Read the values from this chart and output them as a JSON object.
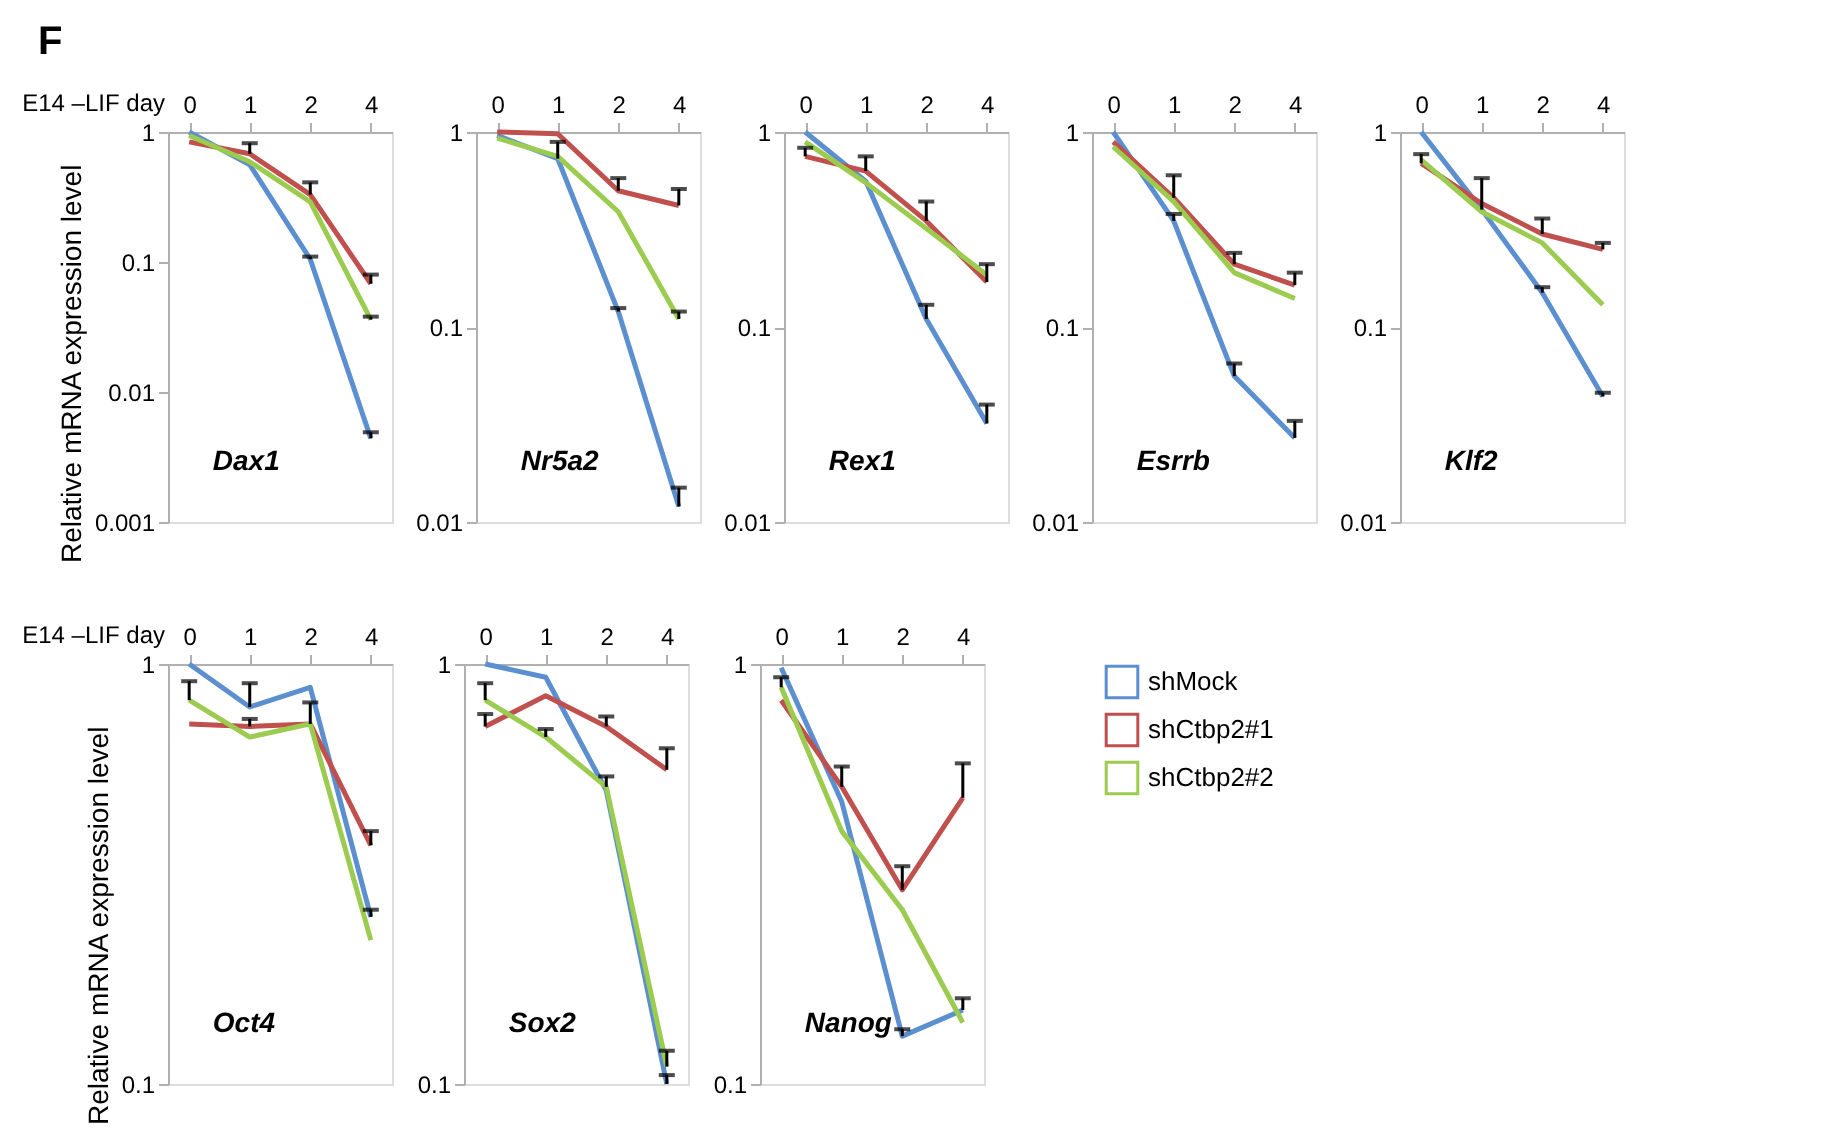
{
  "chart_data": [
    {
      "type": "line",
      "title": "Dax1",
      "xlabel": "E14 –LIF day",
      "ylabel": "Relative mRNA expression level",
      "annotations": [
        "F"
      ],
      "categories": [
        "0",
        "1",
        "2",
        "4"
      ],
      "log": true,
      "ylim": [
        0.001,
        1
      ],
      "yticks": [
        0.001,
        0.01,
        0.1,
        1
      ],
      "series": [
        {
          "color": "#5b8fd0",
          "values": [
            1.0,
            0.56,
            0.105,
            0.0044
          ],
          "errors": [
            null,
            null,
            [
              0.105,
              0.11
            ],
            [
              0.0044,
              0.0049
            ]
          ]
        },
        {
          "color": "#c0504d",
          "values": [
            0.84,
            0.68,
            0.33,
            0.068
          ],
          "errors": [
            null,
            [
              0.68,
              0.82
            ],
            [
              0.33,
              0.41
            ],
            [
              0.068,
              0.08
            ]
          ]
        },
        {
          "color": "#9bcb4f",
          "values": [
            0.94,
            0.59,
            0.29,
            0.036
          ],
          "errors": [
            null,
            null,
            null,
            [
              0.036,
              0.038
            ]
          ]
        }
      ]
    },
    {
      "type": "line",
      "title": "Nr5a2",
      "categories": [
        "0",
        "1",
        "2",
        "4"
      ],
      "log": true,
      "ylim": [
        0.01,
        1
      ],
      "yticks": [
        0.01,
        0.1,
        1
      ],
      "series": [
        {
          "color": "#5b8fd0",
          "values": [
            0.96,
            0.73,
            0.12,
            0.012
          ],
          "errors": [
            null,
            [
              0.73,
              0.89
            ],
            [
              0.12,
              0.125
            ],
            [
              0.012,
              0.015
            ]
          ]
        },
        {
          "color": "#c0504d",
          "values": [
            1.0,
            0.98,
            0.5,
            0.42
          ],
          "errors": [
            null,
            null,
            [
              0.5,
              0.58
            ],
            [
              0.42,
              0.51
            ]
          ]
        },
        {
          "color": "#9bcb4f",
          "values": [
            0.93,
            0.75,
            0.39,
            0.11
          ],
          "errors": [
            null,
            null,
            null,
            [
              0.11,
              0.12
            ]
          ]
        }
      ]
    },
    {
      "type": "line",
      "title": "Rex1",
      "categories": [
        "0",
        "1",
        "2",
        "4"
      ],
      "log": true,
      "ylim": [
        0.01,
        1
      ],
      "yticks": [
        0.01,
        0.1,
        1
      ],
      "series": [
        {
          "color": "#5b8fd0",
          "values": [
            1.0,
            0.56,
            0.11,
            0.032
          ],
          "errors": [
            null,
            null,
            [
              0.11,
              0.13
            ],
            [
              0.032,
              0.04
            ]
          ]
        },
        {
          "color": "#c0504d",
          "values": [
            0.75,
            0.63,
            0.35,
            0.17
          ],
          "errors": [
            [
              0.75,
              0.83
            ],
            [
              0.63,
              0.75
            ],
            [
              0.35,
              0.44
            ],
            [
              0.17,
              0.21
            ]
          ]
        },
        {
          "color": "#9bcb4f",
          "values": [
            0.89,
            0.55,
            0.32,
            0.185
          ],
          "errors": [
            null,
            null,
            null,
            null
          ]
        }
      ]
    },
    {
      "type": "line",
      "title": "Esrrb",
      "categories": [
        "0",
        "1",
        "2",
        "4"
      ],
      "log": true,
      "ylim": [
        0.01,
        1
      ],
      "yticks": [
        0.01,
        0.1,
        1
      ],
      "series": [
        {
          "color": "#5b8fd0",
          "values": [
            1.0,
            0.35,
            0.056,
            0.027
          ],
          "errors": [
            null,
            [
              0.35,
              0.38
            ],
            [
              0.056,
              0.065
            ],
            [
              0.027,
              0.033
            ]
          ]
        },
        {
          "color": "#c0504d",
          "values": [
            0.89,
            0.46,
            0.21,
            0.164
          ],
          "errors": [
            null,
            [
              0.46,
              0.6
            ],
            [
              0.21,
              0.24
            ],
            [
              0.164,
              0.19
            ]
          ]
        },
        {
          "color": "#9bcb4f",
          "values": [
            0.84,
            0.44,
            0.19,
            0.14
          ],
          "errors": [
            null,
            null,
            null,
            null
          ]
        }
      ]
    },
    {
      "type": "line",
      "title": "Klf2",
      "categories": [
        "0",
        "1",
        "2",
        "4"
      ],
      "log": true,
      "ylim": [
        0.01,
        1
      ],
      "yticks": [
        0.01,
        0.1,
        1
      ],
      "series": [
        {
          "color": "#5b8fd0",
          "values": [
            1.0,
            0.4,
            0.15,
            0.044
          ],
          "errors": [
            null,
            [
              0.4,
              0.58
            ],
            [
              0.15,
              0.16
            ],
            [
              0.044,
              0.046
            ]
          ]
        },
        {
          "color": "#c0504d",
          "values": [
            0.69,
            0.43,
            0.3,
            0.25
          ],
          "errors": [
            [
              0.69,
              0.77
            ],
            null,
            [
              0.3,
              0.36
            ],
            [
              0.25,
              0.27
            ]
          ]
        },
        {
          "color": "#9bcb4f",
          "values": [
            0.72,
            0.39,
            0.27,
            0.13
          ],
          "errors": [
            null,
            null,
            null,
            null
          ]
        }
      ]
    },
    {
      "type": "line",
      "title": "Oct4",
      "xlabel": "E14 –LIF day",
      "ylabel": "Relative mRNA expression level",
      "categories": [
        "0",
        "1",
        "2",
        "4"
      ],
      "log": true,
      "ylim": [
        0.1,
        1
      ],
      "yticks": [
        0.1,
        1
      ],
      "series": [
        {
          "color": "#5b8fd0",
          "values": [
            1.0,
            0.79,
            0.88,
            0.25
          ],
          "errors": [
            null,
            [
              0.79,
              0.9
            ],
            null,
            [
              0.25,
              0.26
            ]
          ]
        },
        {
          "color": "#c0504d",
          "values": [
            0.72,
            0.71,
            0.72,
            0.37
          ],
          "errors": [
            null,
            [
              0.71,
              0.74
            ],
            [
              0.72,
              0.81
            ],
            [
              0.37,
              0.4
            ]
          ]
        },
        {
          "color": "#9bcb4f",
          "values": [
            0.82,
            0.67,
            0.72,
            0.22
          ],
          "errors": [
            [
              0.82,
              0.91
            ],
            null,
            null,
            null
          ]
        }
      ]
    },
    {
      "type": "line",
      "title": "Sox2",
      "categories": [
        "0",
        "1",
        "2",
        "4"
      ],
      "log": true,
      "ylim": [
        0.1,
        1
      ],
      "yticks": [
        0.1,
        1
      ],
      "series": [
        {
          "color": "#5b8fd0",
          "values": [
            1.0,
            0.93,
            0.5,
            0.1
          ],
          "errors": [
            null,
            null,
            null,
            [
              0.1,
              0.105
            ]
          ]
        },
        {
          "color": "#c0504d",
          "values": [
            0.71,
            0.84,
            0.71,
            0.56
          ],
          "errors": [
            [
              0.71,
              0.76
            ],
            null,
            [
              0.71,
              0.75
            ],
            [
              0.56,
              0.63
            ]
          ]
        },
        {
          "color": "#9bcb4f",
          "values": [
            0.82,
            0.67,
            0.51,
            0.11
          ],
          "errors": [
            [
              0.82,
              0.9
            ],
            [
              0.67,
              0.7
            ],
            [
              0.51,
              0.54
            ],
            [
              0.11,
              0.12
            ]
          ]
        }
      ]
    },
    {
      "type": "line",
      "title": "Nanog",
      "categories": [
        "0",
        "1",
        "2",
        "4"
      ],
      "log": true,
      "ylim": [
        0.1,
        1
      ],
      "yticks": [
        0.1,
        1
      ],
      "legend": "right",
      "series": [
        {
          "name": "shMock",
          "color": "#5b8fd0",
          "values": [
            0.98,
            0.47,
            0.13,
            0.15
          ],
          "errors": [
            null,
            null,
            [
              0.13,
              0.135
            ],
            [
              0.15,
              0.16
            ]
          ]
        },
        {
          "name": "shCtbp2#1",
          "color": "#c0504d",
          "values": [
            0.82,
            0.51,
            0.29,
            0.48
          ],
          "errors": [
            null,
            [
              0.51,
              0.57
            ],
            [
              0.29,
              0.33
            ],
            [
              0.48,
              0.58
            ]
          ]
        },
        {
          "name": "shCtbp2#2",
          "color": "#9bcb4f",
          "values": [
            0.88,
            0.4,
            0.26,
            0.14
          ],
          "errors": [
            [
              0.88,
              0.93
            ],
            null,
            null,
            null
          ]
        }
      ]
    }
  ]
}
